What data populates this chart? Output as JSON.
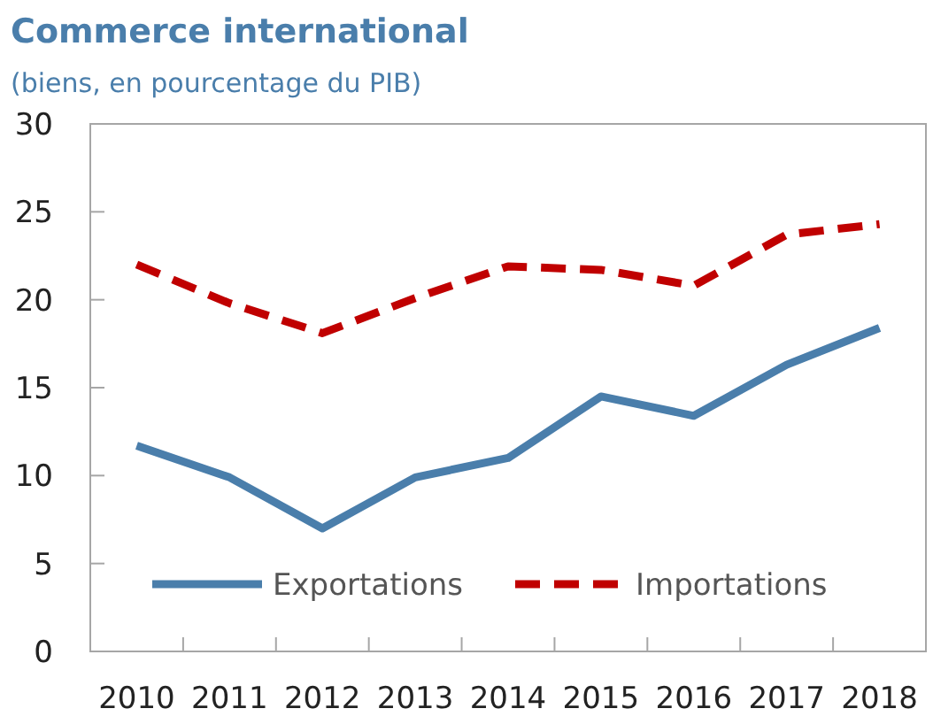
{
  "chart_data": {
    "type": "line",
    "title": "Commerce international",
    "subtitle": "(biens, en pourcentage du PIB)",
    "categories": [
      "2010",
      "2011",
      "2012",
      "2013",
      "2014",
      "2015",
      "2016",
      "2017",
      "2018"
    ],
    "series": [
      {
        "name": "Exportations",
        "color": "#4a7eab",
        "line_style": "solid",
        "values": [
          11.7,
          9.9,
          7.0,
          9.9,
          11.0,
          14.5,
          13.4,
          16.3,
          18.4
        ]
      },
      {
        "name": "Importations",
        "color": "#c00000",
        "line_style": "dashed",
        "values": [
          22.0,
          19.8,
          18.1,
          20.1,
          21.9,
          21.7,
          20.8,
          23.7,
          24.3
        ]
      }
    ],
    "ylim": [
      0,
      30
    ],
    "yticks": [
      0,
      5,
      10,
      15,
      20,
      25,
      30
    ],
    "grid": false,
    "legend": "bottom"
  }
}
